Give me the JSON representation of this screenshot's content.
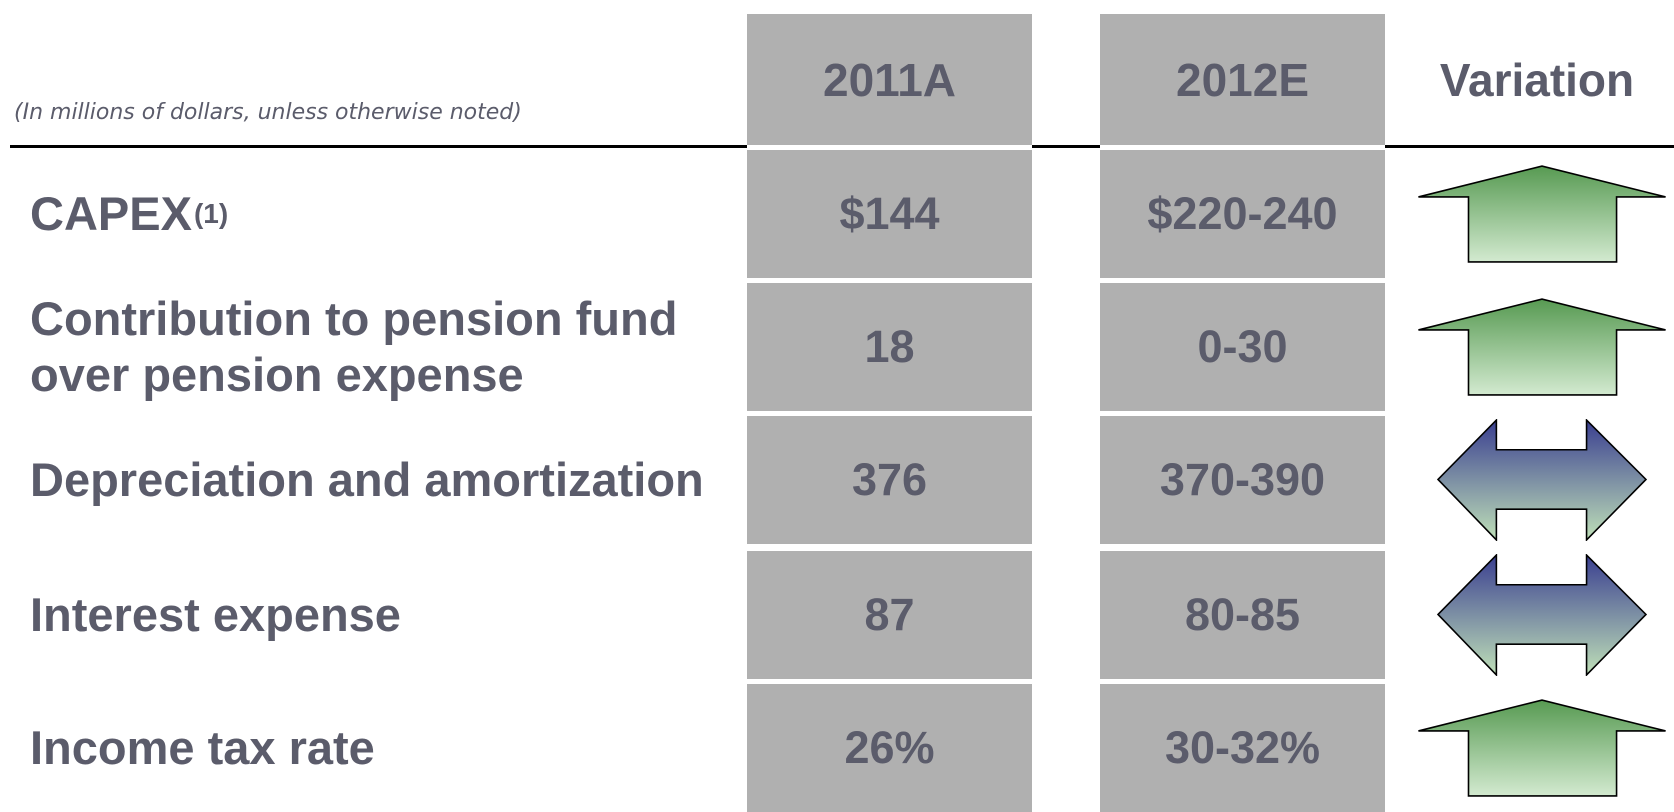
{
  "note": "(In millions of dollars, unless otherwise noted)",
  "table": {
    "headers": [
      "2011A",
      "2012E",
      "Variation"
    ],
    "rows": [
      {
        "label": "CAPEX",
        "sup": "(1)",
        "a": "$144",
        "e": "$220-240"
      },
      {
        "label": "Contribution to pension fund over pension expense",
        "a": "18",
        "e": "0-30"
      },
      {
        "label": "Depreciation and amortization",
        "a": "376",
        "e": "370-390"
      },
      {
        "label": "Interest expense",
        "a": "87",
        "e": "80-85"
      },
      {
        "label": "Income tax rate",
        "a": "26%",
        "e": "30-32%"
      }
    ]
  }
}
